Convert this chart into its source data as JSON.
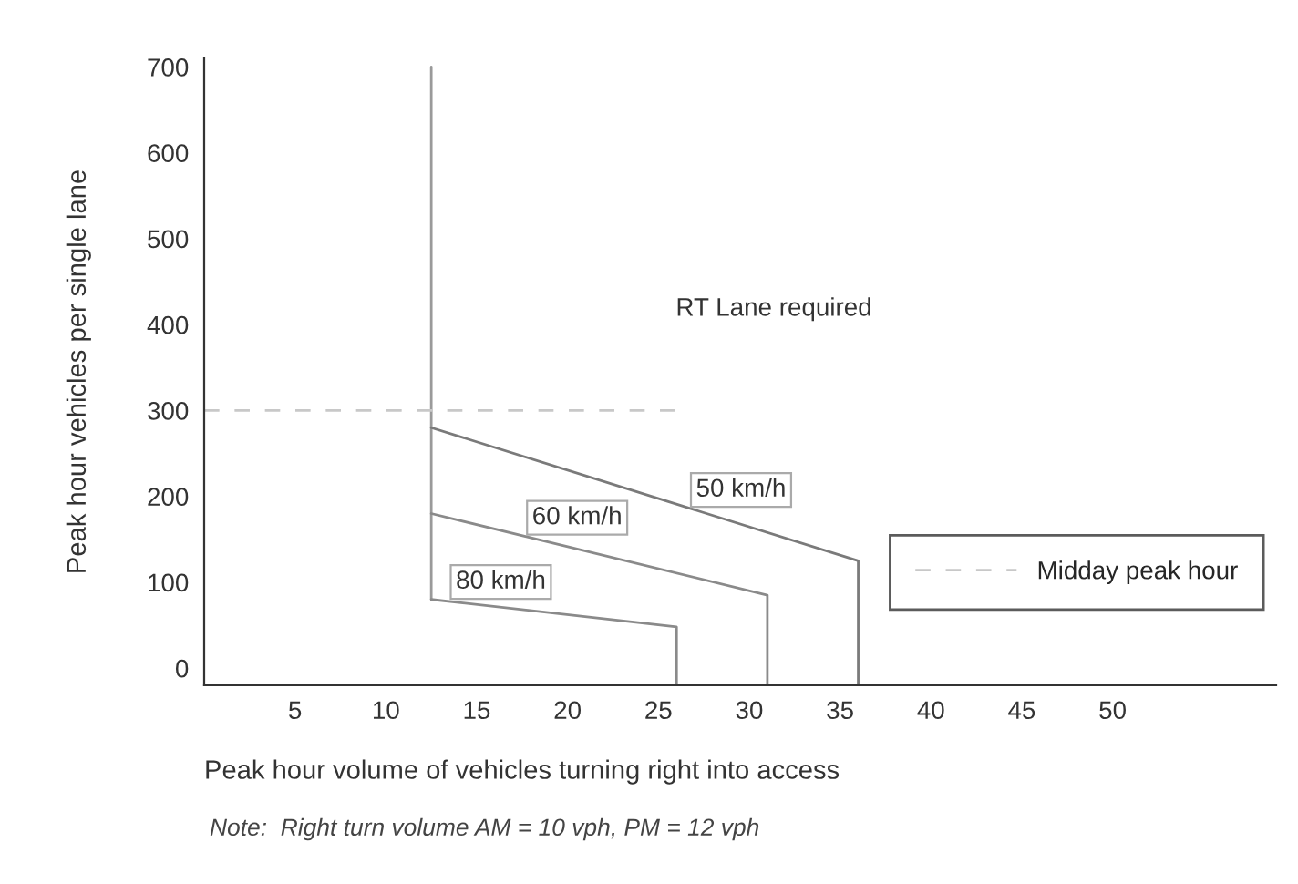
{
  "chart_data": {
    "type": "line",
    "xlabel": "Peak hour volume of vehicles turning right into access",
    "ylabel": "Peak hour vehicles per single lane",
    "xlim": [
      0,
      59
    ],
    "xticks": [
      5,
      10,
      15,
      20,
      25,
      30,
      35,
      40,
      45,
      50
    ],
    "ylim": [
      -20,
      710
    ],
    "yticks": [
      0,
      100,
      200,
      300,
      400,
      500,
      600,
      700
    ],
    "series": [
      {
        "color": "#9a9a9a",
        "x": [
          12.5,
          12.5
        ],
        "values": [
          80,
          700
        ],
        "line_style": "solid"
      },
      {
        "name": "80 km/h",
        "color": "#8a8a8a",
        "x": [
          12.5,
          26,
          26
        ],
        "values": [
          80,
          48,
          -20
        ],
        "line_style": "solid"
      },
      {
        "name": "60 km/h",
        "color": "#8a8a8a",
        "x": [
          12.5,
          31,
          31
        ],
        "values": [
          180,
          85,
          -20
        ],
        "line_style": "solid"
      },
      {
        "name": "50 km/h",
        "color": "#7a7a7a",
        "x": [
          12.5,
          36,
          36
        ],
        "values": [
          280,
          125,
          -20
        ],
        "line_style": "solid"
      },
      {
        "name": "Midday peak hour",
        "color": "#c8c8c8",
        "x": [
          0,
          26
        ],
        "values": [
          300,
          300
        ],
        "line_style": "dashed"
      }
    ],
    "annotations": [
      "RT Lane required",
      "Note:  Right turn volume AM = 10 vph, PM = 12 vph"
    ],
    "legend": "right",
    "grid": false,
    "marker": "none"
  }
}
